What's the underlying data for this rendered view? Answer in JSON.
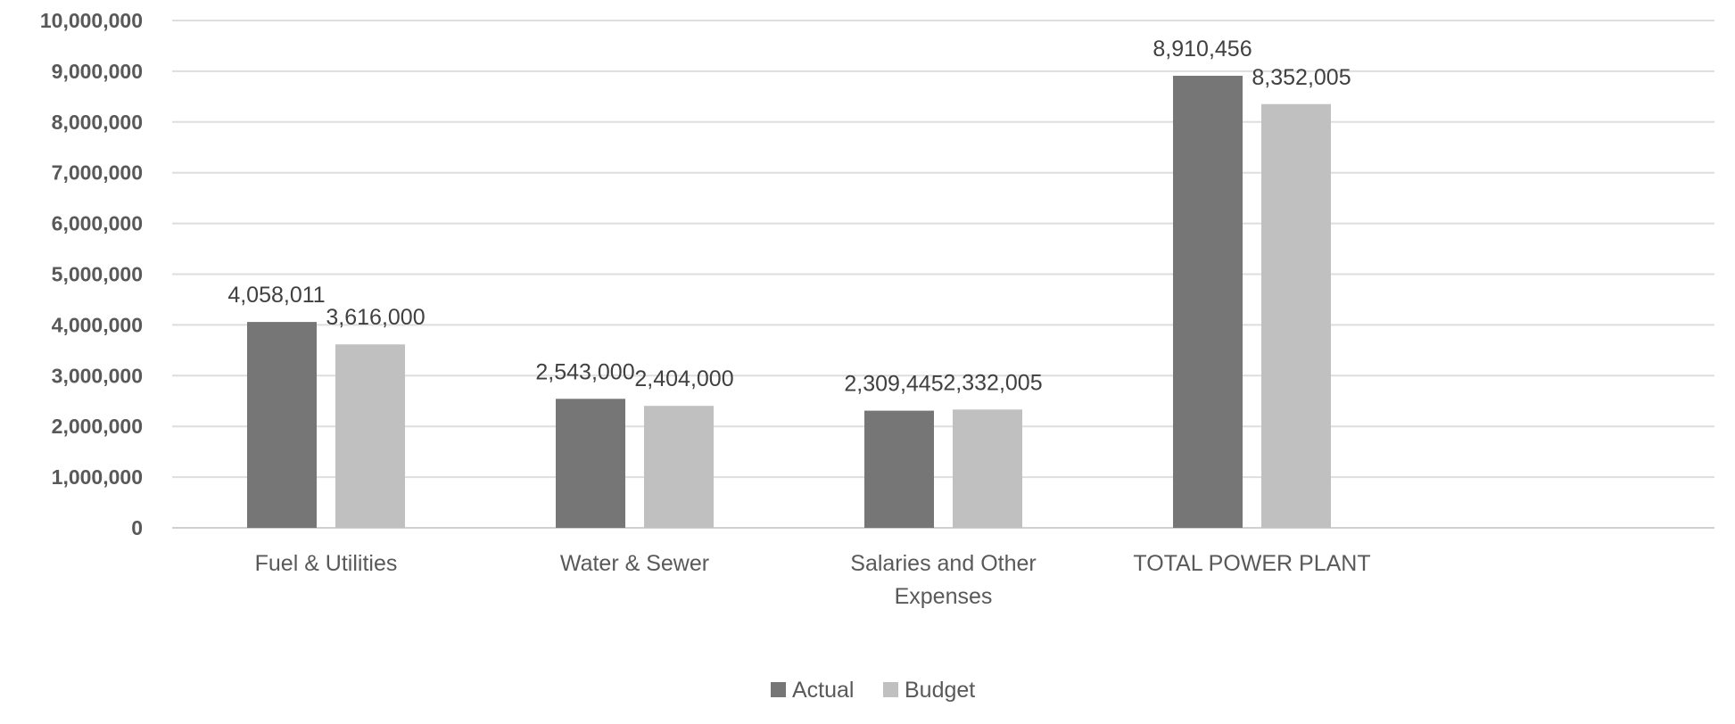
{
  "chart_data": {
    "type": "bar",
    "title": "",
    "xlabel": "",
    "ylabel": "",
    "ylim": [
      0,
      10000000
    ],
    "yticks": [
      "0",
      "1,000,000",
      "2,000,000",
      "3,000,000",
      "4,000,000",
      "5,000,000",
      "6,000,000",
      "7,000,000",
      "8,000,000",
      "9,000,000",
      "10,000,000"
    ],
    "categories": [
      [
        "Fuel & Utilities"
      ],
      [
        "Water & Sewer"
      ],
      [
        "Salaries and Other",
        "Expenses"
      ],
      [
        "TOTAL POWER PLANT"
      ]
    ],
    "series": [
      {
        "name": "Actual",
        "color": "#767676",
        "values": [
          4058011,
          2543000,
          2309445,
          8910456
        ],
        "labels": [
          "4,058,011",
          "2,543,000",
          "2,309,445",
          "8,910,456"
        ]
      },
      {
        "name": "Budget",
        "color": "#c0c0c0",
        "values": [
          3616000,
          2404000,
          2332005,
          8352005
        ],
        "labels": [
          "3,616,000",
          "2,404,000",
          "2,332,005",
          "8,352,005"
        ]
      }
    ],
    "grid": true,
    "legend": "bottom-center"
  }
}
